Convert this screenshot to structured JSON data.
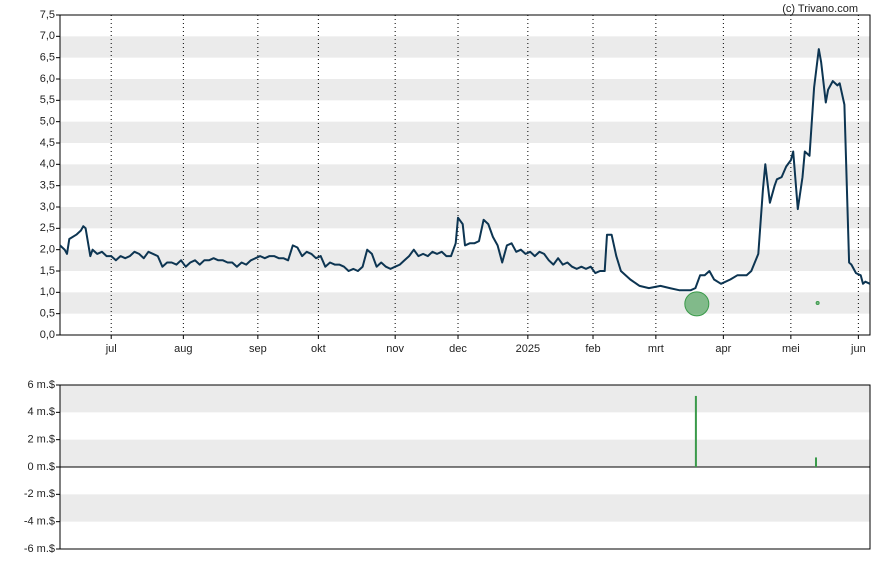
{
  "chart_data": [
    {
      "type": "line",
      "attribution": "(c) Trivano.com",
      "color": "#0d3552",
      "x": [
        0,
        2,
        3,
        4,
        7,
        9,
        10,
        11,
        13,
        14,
        16,
        18,
        20,
        22,
        24,
        26,
        28,
        30,
        32,
        34,
        36,
        38,
        40,
        42,
        44,
        46,
        48,
        50,
        52,
        54,
        56,
        58,
        60,
        62,
        64,
        66,
        68,
        70,
        72,
        74,
        76,
        78,
        80,
        82,
        84,
        86,
        88,
        90,
        92,
        94,
        96,
        98,
        100,
        102,
        104,
        106,
        108,
        110,
        112,
        114,
        116,
        118,
        120,
        122,
        124,
        126,
        128,
        130,
        132,
        134,
        136,
        138,
        140,
        142,
        144,
        146,
        148,
        150,
        152,
        154,
        156,
        158,
        160,
        162,
        164,
        166,
        168,
        170,
        171,
        173,
        174,
        176,
        178,
        180,
        182,
        184,
        186,
        188,
        190,
        192,
        194,
        196,
        198,
        200,
        202,
        204,
        206,
        208,
        210,
        212,
        214,
        216,
        218,
        220,
        222,
        224,
        226,
        228,
        230,
        232,
        234,
        235,
        237,
        239,
        241,
        245,
        249,
        253,
        258,
        262,
        266,
        271,
        273,
        275,
        277,
        279,
        281,
        284,
        288,
        291,
        295,
        297,
        300,
        302,
        303,
        305,
        307,
        308,
        310,
        312,
        314,
        315,
        317,
        319,
        320,
        322,
        324,
        326,
        327,
        329,
        330,
        332,
        334,
        335,
        337,
        339,
        340,
        342,
        344,
        345,
        346,
        348
      ],
      "values": [
        2.1,
        2.0,
        1.9,
        2.25,
        2.35,
        2.45,
        2.55,
        2.5,
        1.85,
        2.0,
        1.9,
        1.95,
        1.85,
        1.85,
        1.75,
        1.85,
        1.8,
        1.85,
        1.95,
        1.9,
        1.8,
        1.95,
        1.9,
        1.85,
        1.6,
        1.7,
        1.7,
        1.65,
        1.75,
        1.6,
        1.7,
        1.75,
        1.65,
        1.75,
        1.75,
        1.8,
        1.75,
        1.75,
        1.7,
        1.7,
        1.6,
        1.7,
        1.65,
        1.75,
        1.8,
        1.85,
        1.8,
        1.85,
        1.85,
        1.8,
        1.8,
        1.75,
        2.1,
        2.05,
        1.85,
        1.95,
        1.9,
        1.8,
        1.85,
        1.6,
        1.7,
        1.65,
        1.65,
        1.6,
        1.5,
        1.55,
        1.5,
        1.6,
        2.0,
        1.9,
        1.6,
        1.7,
        1.6,
        1.55,
        1.6,
        1.65,
        1.75,
        1.85,
        2.0,
        1.85,
        1.9,
        1.85,
        1.95,
        1.9,
        1.95,
        1.85,
        1.85,
        2.15,
        2.75,
        2.6,
        2.1,
        2.15,
        2.15,
        2.2,
        2.7,
        2.6,
        2.3,
        2.1,
        1.7,
        2.1,
        2.15,
        1.95,
        2.0,
        1.9,
        1.95,
        1.85,
        1.95,
        1.9,
        1.75,
        1.65,
        1.8,
        1.65,
        1.7,
        1.6,
        1.55,
        1.6,
        1.55,
        1.6,
        1.45,
        1.5,
        1.5,
        2.35,
        2.35,
        1.85,
        1.5,
        1.3,
        1.15,
        1.1,
        1.15,
        1.1,
        1.05,
        1.05,
        1.1,
        1.4,
        1.4,
        1.5,
        1.3,
        1.2,
        1.3,
        1.4,
        1.4,
        1.5,
        1.9,
        3.4,
        4.0,
        3.1,
        3.5,
        3.65,
        3.7,
        3.95,
        4.1,
        4.3,
        2.95,
        3.7,
        4.3,
        4.2,
        5.8,
        6.7,
        6.4,
        5.45,
        5.75,
        5.95,
        5.85,
        5.9,
        5.4,
        1.7,
        1.65,
        1.45,
        1.4,
        1.2,
        1.25,
        1.2
      ],
      "markers": {
        "color": "#3a9a4a",
        "x": [
          273.6,
          325.5
        ],
        "values": [
          0.73,
          0.75
        ],
        "sizes": [
          12,
          1.5
        ]
      },
      "xlim": [
        0,
        348
      ],
      "xticks": [
        {
          "value": 22,
          "label": "jul"
        },
        {
          "value": 53,
          "label": "aug"
        },
        {
          "value": 85,
          "label": "sep"
        },
        {
          "value": 111,
          "label": "okt"
        },
        {
          "value": 144,
          "label": "nov"
        },
        {
          "value": 171,
          "label": "dec"
        },
        {
          "value": 201,
          "label": "2025"
        },
        {
          "value": 229,
          "label": "feb"
        },
        {
          "value": 256,
          "label": "mrt"
        },
        {
          "value": 285,
          "label": "apr"
        },
        {
          "value": 314,
          "label": "mei"
        },
        {
          "value": 343,
          "label": "jun"
        }
      ],
      "ylim": [
        0,
        7.5
      ],
      "yticks": [
        {
          "value": 7.5,
          "label": "7,5"
        },
        {
          "value": 7.0,
          "label": "7,0"
        },
        {
          "value": 6.5,
          "label": "6,5"
        },
        {
          "value": 6.0,
          "label": "6,0"
        },
        {
          "value": 5.5,
          "label": "5,5"
        },
        {
          "value": 5.0,
          "label": "5,0"
        },
        {
          "value": 4.5,
          "label": "4,5"
        },
        {
          "value": 4.0,
          "label": "4,0"
        },
        {
          "value": 3.5,
          "label": "3,5"
        },
        {
          "value": 3.0,
          "label": "3,0"
        },
        {
          "value": 2.5,
          "label": "2,5"
        },
        {
          "value": 2.0,
          "label": "2,0"
        },
        {
          "value": 1.5,
          "label": "1,5"
        },
        {
          "value": 1.0,
          "label": "1,0"
        },
        {
          "value": 0.5,
          "label": "0,5"
        },
        {
          "value": 0,
          "label": "0,0"
        }
      ],
      "grid": true
    },
    {
      "type": "bar",
      "color": "#3a9a4a",
      "x": [
        273.2,
        324.8
      ],
      "values": [
        5.2,
        0.7
      ],
      "xlim": [
        0,
        348
      ],
      "ylim": [
        -6,
        6
      ],
      "yticks": [
        {
          "value": 6,
          "label": "6 m.$"
        },
        {
          "value": 4,
          "label": "4 m.$"
        },
        {
          "value": 2,
          "label": "2 m.$"
        },
        {
          "value": 0,
          "label": "0 m.$"
        },
        {
          "value": -2,
          "label": "-2 m.$"
        },
        {
          "value": -4,
          "label": "-4 m.$"
        },
        {
          "value": -6,
          "label": "-6 m.$"
        }
      ]
    }
  ]
}
